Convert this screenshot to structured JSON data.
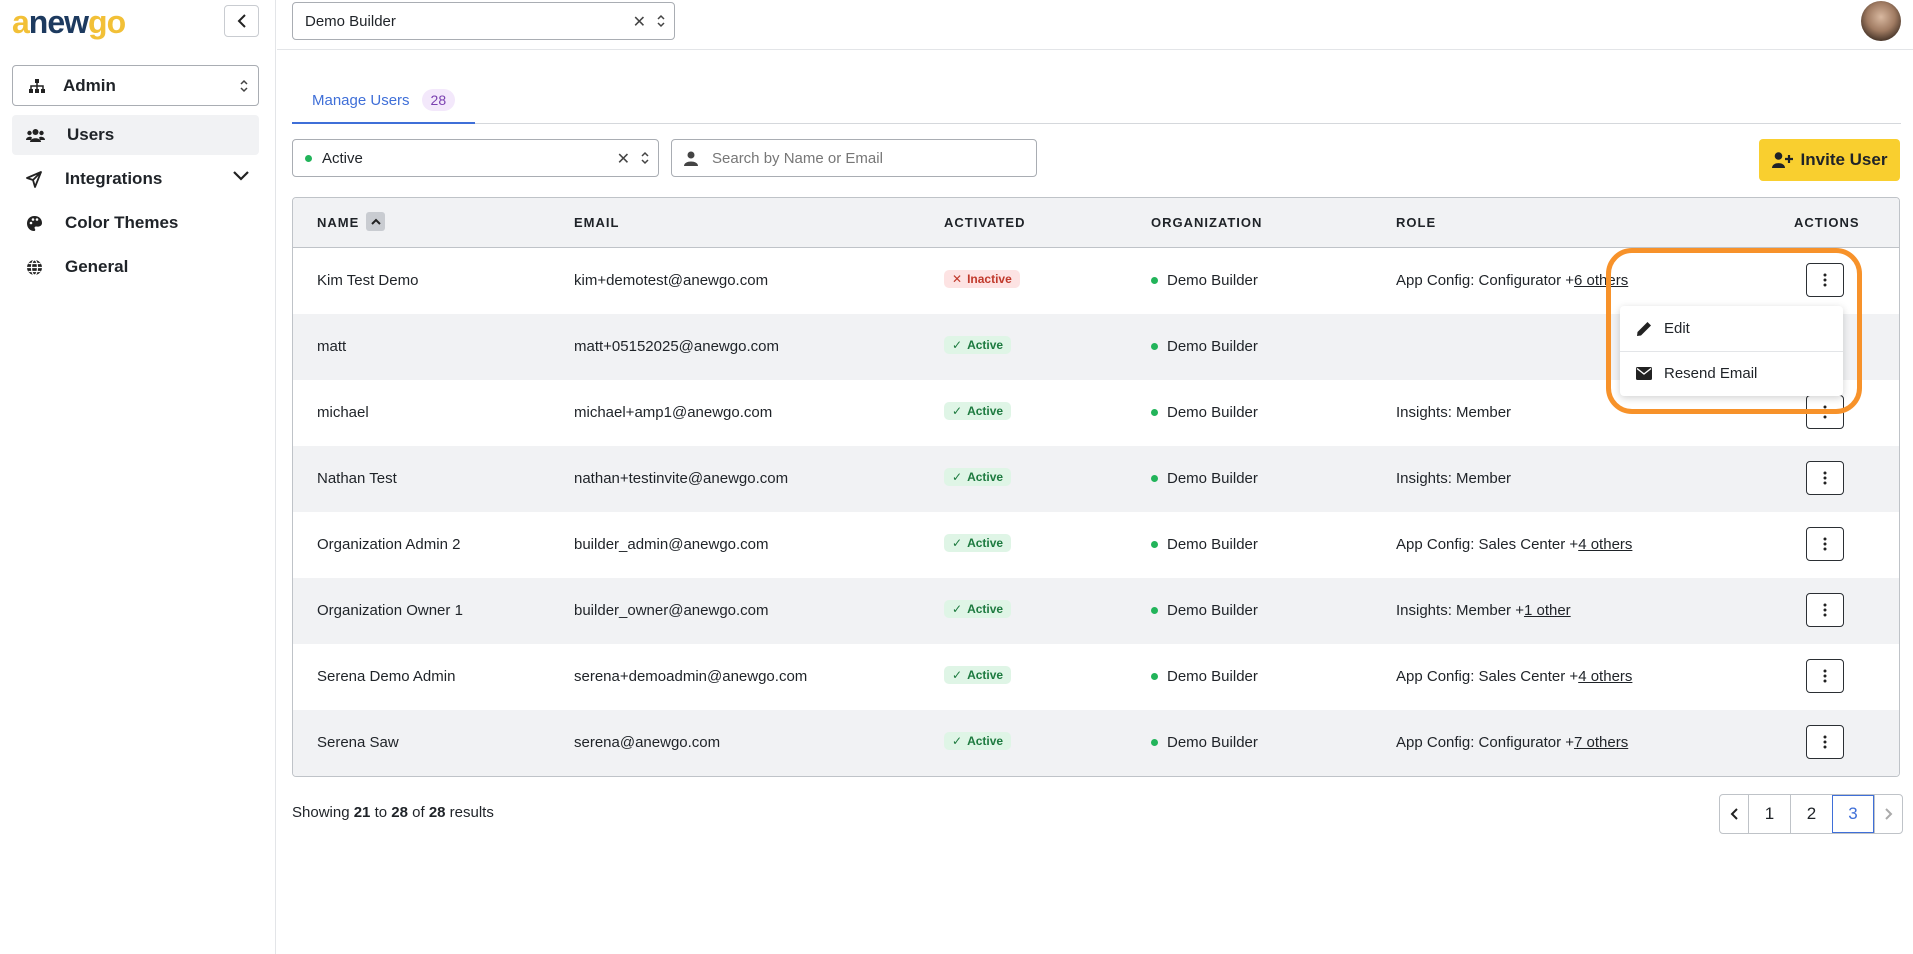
{
  "logo": {
    "a": "a",
    "new": "new",
    "go": "go"
  },
  "sidebar": {
    "section_select": "Admin",
    "items": [
      {
        "label": "Users",
        "icon": "users-icon"
      },
      {
        "label": "Integrations",
        "icon": "integrations-icon"
      },
      {
        "label": "Color Themes",
        "icon": "palette-icon"
      },
      {
        "label": "General",
        "icon": "globe-icon"
      }
    ]
  },
  "topbar": {
    "org_select": "Demo Builder",
    "clear": "✕"
  },
  "tabs": [
    {
      "label": "Manage Users",
      "count": "28"
    }
  ],
  "filters": {
    "status": "Active",
    "clear": "✕",
    "search_placeholder": "Search by Name or Email",
    "search_value": ""
  },
  "invite_button": "Invite User",
  "table": {
    "headers": {
      "name": "NAME",
      "email": "EMAIL",
      "activated": "ACTIVATED",
      "organization": "ORGANIZATION",
      "role": "ROLE",
      "actions": "ACTIONS"
    },
    "rows": [
      {
        "name": "Kim Test Demo",
        "email": "kim+demotest@anewgo.com",
        "status": "Inactive",
        "status_icon": "✕",
        "org": "Demo Builder",
        "role": "App Config: Configurator +",
        "role_more": "6 others"
      },
      {
        "name": "matt",
        "email": "matt+05152025@anewgo.com",
        "status": "Active",
        "status_icon": "✓",
        "org": "Demo Builder",
        "role": "",
        "role_more": ""
      },
      {
        "name": "michael",
        "email": "michael+amp1@anewgo.com",
        "status": "Active",
        "status_icon": "✓",
        "org": "Demo Builder",
        "role": "Insights: Member",
        "role_more": ""
      },
      {
        "name": "Nathan Test",
        "email": "nathan+testinvite@anewgo.com",
        "status": "Active",
        "status_icon": "✓",
        "org": "Demo Builder",
        "role": "Insights: Member",
        "role_more": ""
      },
      {
        "name": "Organization Admin 2",
        "email": "builder_admin@anewgo.com",
        "status": "Active",
        "status_icon": "✓",
        "org": "Demo Builder",
        "role": "App Config: Sales Center +",
        "role_more": "4 others"
      },
      {
        "name": "Organization Owner 1",
        "email": "builder_owner@anewgo.com",
        "status": "Active",
        "status_icon": "✓",
        "org": "Demo Builder",
        "role": "Insights: Member +",
        "role_more": "1 other"
      },
      {
        "name": "Serena Demo Admin",
        "email": "serena+demoadmin@anewgo.com",
        "status": "Active",
        "status_icon": "✓",
        "org": "Demo Builder",
        "role": "App Config: Sales Center +",
        "role_more": "4 others"
      },
      {
        "name": "Serena Saw",
        "email": "serena@anewgo.com",
        "status": "Active",
        "status_icon": "✓",
        "org": "Demo Builder",
        "role": "App Config: Configurator +",
        "role_more": "7 others"
      }
    ]
  },
  "action_menu": {
    "items": [
      {
        "label": "Edit",
        "icon": "pencil-icon"
      },
      {
        "label": "Resend Email",
        "icon": "envelope-icon"
      }
    ]
  },
  "footer": {
    "prefix": "Showing ",
    "from": "21",
    "to_word": " to ",
    "to": "28",
    "of_word": " of ",
    "total": "28",
    "suffix": " results"
  },
  "pagination": {
    "pages": [
      "1",
      "2",
      "3"
    ],
    "current": "3"
  },
  "colors": {
    "accent": "#3f6fd8",
    "invite": "#f9cf2f",
    "highlight": "#f7922a",
    "active_green": "#22b45a"
  }
}
